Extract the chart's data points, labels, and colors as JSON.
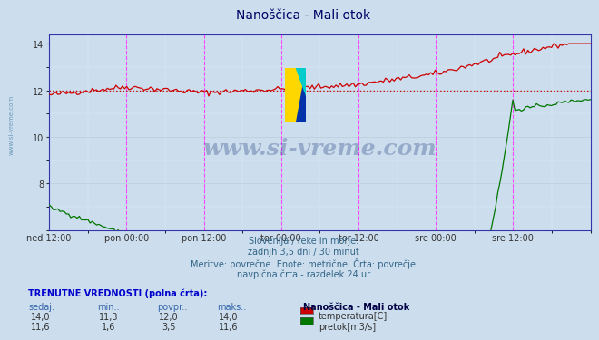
{
  "title": "Nanoščica - Mali otok",
  "bg_color": "#ccdded",
  "plot_bg_color": "#ccdded",
  "grid_color_major": "#bbccdd",
  "ylim": [
    6.0,
    14.4
  ],
  "yticks": [
    8,
    10,
    12,
    14
  ],
  "xlabel_ticks": [
    "ned 12:00",
    "pon 00:00",
    "pon 12:00",
    "tor 00:00",
    "tor 12:00",
    "sre 00:00",
    "sre 12:00"
  ],
  "n_points": 252,
  "temp_color": "#cc0000",
  "flow_color": "#007700",
  "temp_avg": 12.0,
  "flow_avg": 3.5,
  "vline_color": "#ff44ff",
  "subtitle_lines": [
    "Slovenija / reke in morje.",
    "zadnjh 3,5 dni / 30 minut",
    "Meritve: povrečne  Enote: metrične  Črta: povrečje",
    "navpična črta - razdelek 24 ur"
  ],
  "stats_header": "TRENUTNE VREDNOSTI (polna črta):",
  "stats_cols": [
    "sedaj:",
    "min.:",
    "povpr.:",
    "maks.:"
  ],
  "stats_temp": [
    "14,0",
    "11,3",
    "12,0",
    "14,0"
  ],
  "stats_flow": [
    "11,6",
    "1,6",
    "3,5",
    "11,6"
  ],
  "legend_title": "Nanoščica - Mali otok",
  "legend_items": [
    "temperatura[C]",
    "pretok[m3/s]"
  ],
  "legend_colors": [
    "#cc0000",
    "#007700"
  ],
  "watermark_text": "www.si-vreme.com",
  "watermark_color": "#1a3a7a",
  "watermark_alpha": 0.3,
  "side_watermark_color": "#5588aa"
}
